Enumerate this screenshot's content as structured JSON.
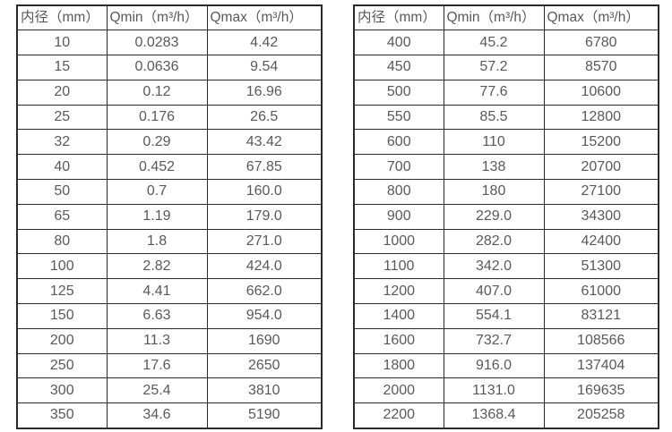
{
  "page": {
    "background_color": "#ffffff",
    "border_color": "#2b2b2b",
    "text_color": "#595959"
  },
  "tables": [
    {
      "name": "flow-rate-table-small-diameters",
      "headers": [
        "内径（mm）",
        "Qmin（m³/h）",
        "Qmax（m³/h）"
      ],
      "rows": [
        [
          "10",
          "0.0283",
          "4.42"
        ],
        [
          "15",
          "0.0636",
          "9.54"
        ],
        [
          "20",
          "0.12",
          "16.96"
        ],
        [
          "25",
          "0.176",
          "26.5"
        ],
        [
          "32",
          "0.29",
          "43.42"
        ],
        [
          "40",
          "0.452",
          "67.85"
        ],
        [
          "50",
          "0.7",
          "160.0"
        ],
        [
          "65",
          "1.19",
          "179.0"
        ],
        [
          "80",
          "1.8",
          "271.0"
        ],
        [
          "100",
          "2.82",
          "424.0"
        ],
        [
          "125",
          "4.41",
          "662.0"
        ],
        [
          "150",
          "6.63",
          "954.0"
        ],
        [
          "200",
          "11.3",
          "1690"
        ],
        [
          "250",
          "17.6",
          "2650"
        ],
        [
          "300",
          "25.4",
          "3810"
        ],
        [
          "350",
          "34.6",
          "5190"
        ]
      ]
    },
    {
      "name": "flow-rate-table-large-diameters",
      "headers": [
        "内径（mm）",
        "Qmin（m³/h）",
        "Qmax（m³/h）"
      ],
      "rows": [
        [
          "400",
          "45.2",
          "6780"
        ],
        [
          "450",
          "57.2",
          "8570"
        ],
        [
          "500",
          "77.6",
          "10600"
        ],
        [
          "550",
          "85.5",
          "12800"
        ],
        [
          "600",
          "110",
          "15200"
        ],
        [
          "700",
          "138",
          "20700"
        ],
        [
          "800",
          "180",
          "27100"
        ],
        [
          "900",
          "229.0",
          "34300"
        ],
        [
          "1000",
          "282.0",
          "42400"
        ],
        [
          "1100",
          "342.0",
          "51300"
        ],
        [
          "1200",
          "407.0",
          "61000"
        ],
        [
          "1400",
          "554.1",
          "83121"
        ],
        [
          "1600",
          "732.7",
          "108566"
        ],
        [
          "1800",
          "916.0",
          "137404"
        ],
        [
          "2000",
          "1131.0",
          "169635"
        ],
        [
          "2200",
          "1368.4",
          "205258"
        ]
      ]
    }
  ]
}
